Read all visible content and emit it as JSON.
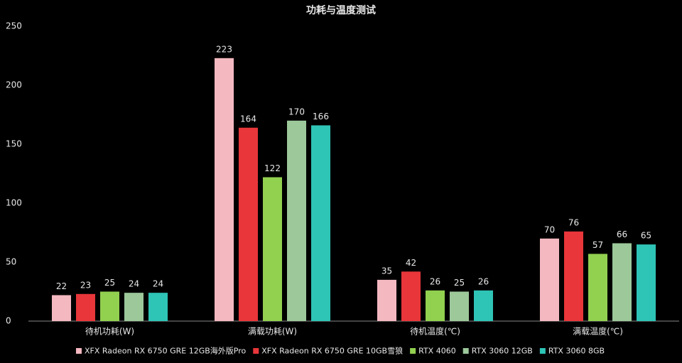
{
  "chart_data": {
    "type": "bar",
    "title": "功耗与温度测试",
    "categories": [
      "待机功耗(W)",
      "满载功耗(W)",
      "待机温度(℃)",
      "满载温度(℃)"
    ],
    "series": [
      {
        "name": "XFX Radeon RX 6750 GRE 12GB海外版Pro",
        "color": "#f4b8c1",
        "values": [
          22,
          223,
          35,
          70
        ]
      },
      {
        "name": "XFX Radeon RX 6750 GRE 10GB雪狼",
        "color": "#e8363a",
        "values": [
          23,
          164,
          42,
          76
        ]
      },
      {
        "name": "RTX 4060",
        "color": "#92d050",
        "values": [
          25,
          122,
          26,
          57
        ]
      },
      {
        "name": "RTX 3060 12GB",
        "color": "#9cc89a",
        "values": [
          24,
          170,
          25,
          66
        ]
      },
      {
        "name": "RTX 3060 8GB",
        "color": "#2ec4b6",
        "values": [
          24,
          166,
          26,
          65
        ]
      }
    ],
    "ylim": [
      0,
      250
    ],
    "yticks": [
      0,
      50,
      100,
      150,
      200,
      250
    ],
    "grid": false,
    "legend": "bottom"
  }
}
